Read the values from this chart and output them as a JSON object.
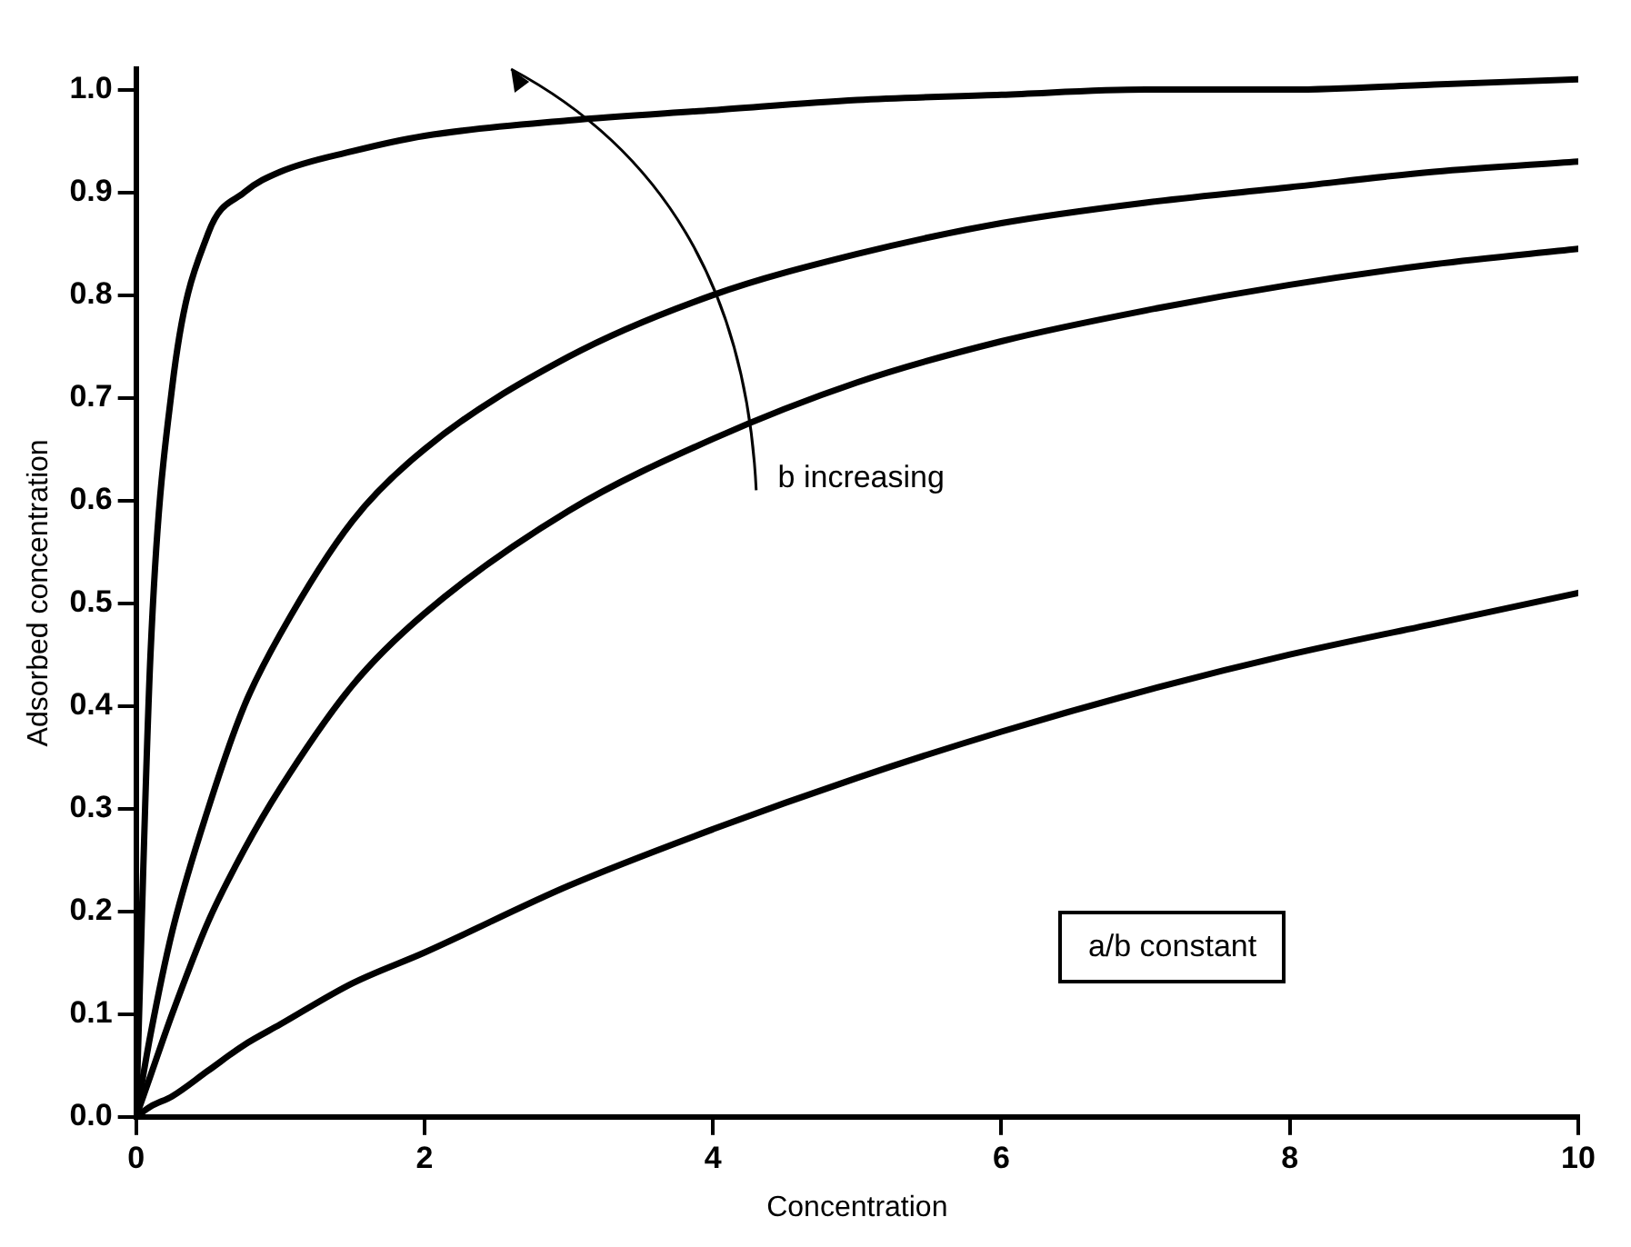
{
  "chart_data": {
    "type": "line",
    "xlabel": "Concentration",
    "ylabel": "Adsorbed concentration",
    "x": [
      0,
      0.1,
      0.25,
      0.5,
      0.75,
      1,
      1.5,
      2,
      3,
      4,
      5,
      6,
      7,
      8,
      9,
      10
    ],
    "series": [
      {
        "color": "#000000",
        "values": [
          0,
          0.45,
          0.71,
          0.86,
          0.9,
          0.92,
          0.94,
          0.955,
          0.97,
          0.98,
          0.99,
          0.995,
          1.0,
          1.0,
          1.005,
          1.01
        ]
      },
      {
        "color": "#000000",
        "values": [
          0,
          0.08,
          0.18,
          0.3,
          0.4,
          0.47,
          0.58,
          0.65,
          0.74,
          0.8,
          0.84,
          0.87,
          0.89,
          0.905,
          0.92,
          0.93
        ]
      },
      {
        "color": "#000000",
        "values": [
          0,
          0.04,
          0.1,
          0.19,
          0.26,
          0.32,
          0.42,
          0.49,
          0.59,
          0.66,
          0.715,
          0.755,
          0.785,
          0.81,
          0.83,
          0.845
        ]
      },
      {
        "color": "#000000",
        "values": [
          0,
          0.01,
          0.02,
          0.045,
          0.07,
          0.09,
          0.13,
          0.16,
          0.225,
          0.28,
          0.33,
          0.375,
          0.415,
          0.45,
          0.48,
          0.51
        ]
      }
    ],
    "xlim": [
      0,
      10
    ],
    "xticks": [
      0,
      2,
      4,
      6,
      8,
      10
    ],
    "ylim": [
      0,
      1.02
    ],
    "yticks": [
      {
        "value": 0,
        "label": "0.0"
      },
      0.1,
      0.2,
      0.3,
      0.4,
      0.5,
      0.6,
      0.7,
      0.8,
      0.9,
      {
        "value": 1,
        "label": "1.0"
      }
    ],
    "grid": false,
    "legend": false,
    "marker": "none",
    "line_style": "solid",
    "annotations": [
      "b increasing",
      "a/b constant"
    ]
  }
}
